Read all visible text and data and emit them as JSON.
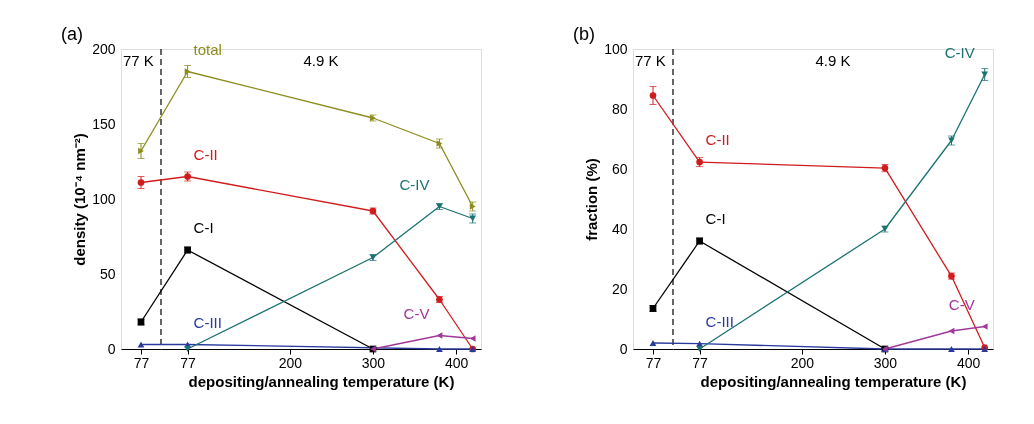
{
  "chart_data": [
    {
      "type": "line",
      "categories": [
        "77"
      ],
      "ylim": [
        0,
        200
      ],
      "yticks": [
        0,
        50,
        100,
        150,
        200
      ],
      "ylabel": "density (10⁻⁴ nm⁻²)",
      "grid": false,
      "annotations": [
        "(a)",
        "77 K"
      ],
      "series": [
        {
          "color": "#8c8c1c",
          "marker": "triangle-right",
          "values": [
            132
          ],
          "errors": [
            5
          ]
        },
        {
          "color": "#d01c1c",
          "marker": "circle",
          "values": [
            111
          ],
          "errors": [
            4
          ]
        },
        {
          "color": "#000000",
          "marker": "square",
          "values": [
            18
          ],
          "errors": [
            2
          ]
        },
        {
          "color": "#2a3a9c",
          "marker": "triangle-up",
          "values": [
            3
          ]
        },
        {
          "color": "#1c7272",
          "marker": "triangle-down",
          "values": [
            null
          ]
        },
        {
          "color": "#a0389a",
          "marker": "triangle-left",
          "values": [
            null
          ]
        }
      ]
    },
    {
      "type": "line",
      "x": [
        77,
        300,
        380,
        420
      ],
      "xlim": [
        45,
        430
      ],
      "xticks": [
        77,
        200,
        300,
        400
      ],
      "xlabel": "depositing/annealing temperature (K)",
      "ylim": [
        0,
        200
      ],
      "tick_labels": "x",
      "grid": false,
      "annotations": [
        "4.9 K"
      ],
      "ref_lines": [
        {
          "axis": "x",
          "value": 45,
          "line_style": "dashed",
          "color": "#000000"
        }
      ],
      "series": [
        {
          "name": "total",
          "color": "#8c8c1c",
          "marker": "triangle-right",
          "values": [
            185,
            154,
            137,
            95
          ],
          "errors": [
            4,
            2,
            3,
            3
          ]
        },
        {
          "name": "C-II",
          "color": "#d01c1c",
          "marker": "circle",
          "values": [
            115,
            92,
            33,
            0
          ],
          "errors": [
            3,
            2,
            2,
            null
          ]
        },
        {
          "name": "C-I",
          "color": "#000000",
          "marker": "square",
          "values": [
            66,
            0,
            null,
            null
          ],
          "errors": [
            2,
            null,
            null,
            null
          ]
        },
        {
          "name": "C-III",
          "color": "#2a3a9c",
          "marker": "triangle-up",
          "values": [
            3,
            null,
            0,
            0
          ]
        },
        {
          "name": "C-IV",
          "color": "#1c7272",
          "marker": "triangle-down",
          "values": [
            0,
            61,
            95,
            87
          ],
          "errors": [
            null,
            2,
            2,
            3
          ]
        },
        {
          "name": "C-V",
          "color": "#a0389a",
          "marker": "triangle-left",
          "values": [
            null,
            0,
            9,
            7
          ]
        }
      ]
    },
    {
      "type": "line",
      "categories": [
        "77"
      ],
      "ylim": [
        0,
        100
      ],
      "yticks": [
        0,
        20,
        40,
        60,
        80,
        100
      ],
      "ylabel": "fraction (%)",
      "grid": false,
      "annotations": [
        "(b)",
        "77 K"
      ],
      "series": [
        {
          "color": "#d01c1c",
          "marker": "circle",
          "values": [
            84.5
          ],
          "errors": [
            3
          ]
        },
        {
          "color": "#000000",
          "marker": "square",
          "values": [
            13.5
          ],
          "errors": [
            1
          ]
        },
        {
          "color": "#2a3a9c",
          "marker": "triangle-up",
          "values": [
            2
          ]
        },
        {
          "color": "#1c7272",
          "marker": "triangle-down",
          "values": [
            null
          ]
        },
        {
          "color": "#a0389a",
          "marker": "triangle-left",
          "values": [
            null
          ]
        }
      ]
    },
    {
      "type": "line",
      "x": [
        77,
        300,
        380,
        420
      ],
      "xlim": [
        45,
        430
      ],
      "xticks": [
        77,
        200,
        300,
        400
      ],
      "xlabel": "depositing/annealing temperature (K)",
      "ylim": [
        0,
        100
      ],
      "tick_labels": "x",
      "grid": false,
      "annotations": [
        "4.9 K"
      ],
      "ref_lines": [
        {
          "axis": "x",
          "value": 45,
          "line_style": "dashed",
          "color": "#000000"
        }
      ],
      "series": [
        {
          "name": "C-II",
          "color": "#d01c1c",
          "marker": "circle",
          "values": [
            62.3,
            60.3,
            24.3,
            0.5
          ],
          "errors": [
            1.5,
            1.2,
            1,
            null
          ]
        },
        {
          "name": "C-I",
          "color": "#000000",
          "marker": "square",
          "values": [
            36,
            0,
            null,
            null
          ],
          "errors": [
            1,
            null,
            null,
            null
          ]
        },
        {
          "name": "C-III",
          "color": "#2a3a9c",
          "marker": "triangle-up",
          "values": [
            1.8,
            0,
            0,
            0
          ]
        },
        {
          "name": "C-IV",
          "color": "#1c7272",
          "marker": "triangle-down",
          "values": [
            0,
            40,
            69.5,
            91.5
          ],
          "errors": [
            null,
            1,
            1.5,
            2
          ]
        },
        {
          "name": "C-V",
          "color": "#a0389a",
          "marker": "triangle-left",
          "values": [
            null,
            0,
            6,
            7.5
          ]
        }
      ]
    }
  ]
}
